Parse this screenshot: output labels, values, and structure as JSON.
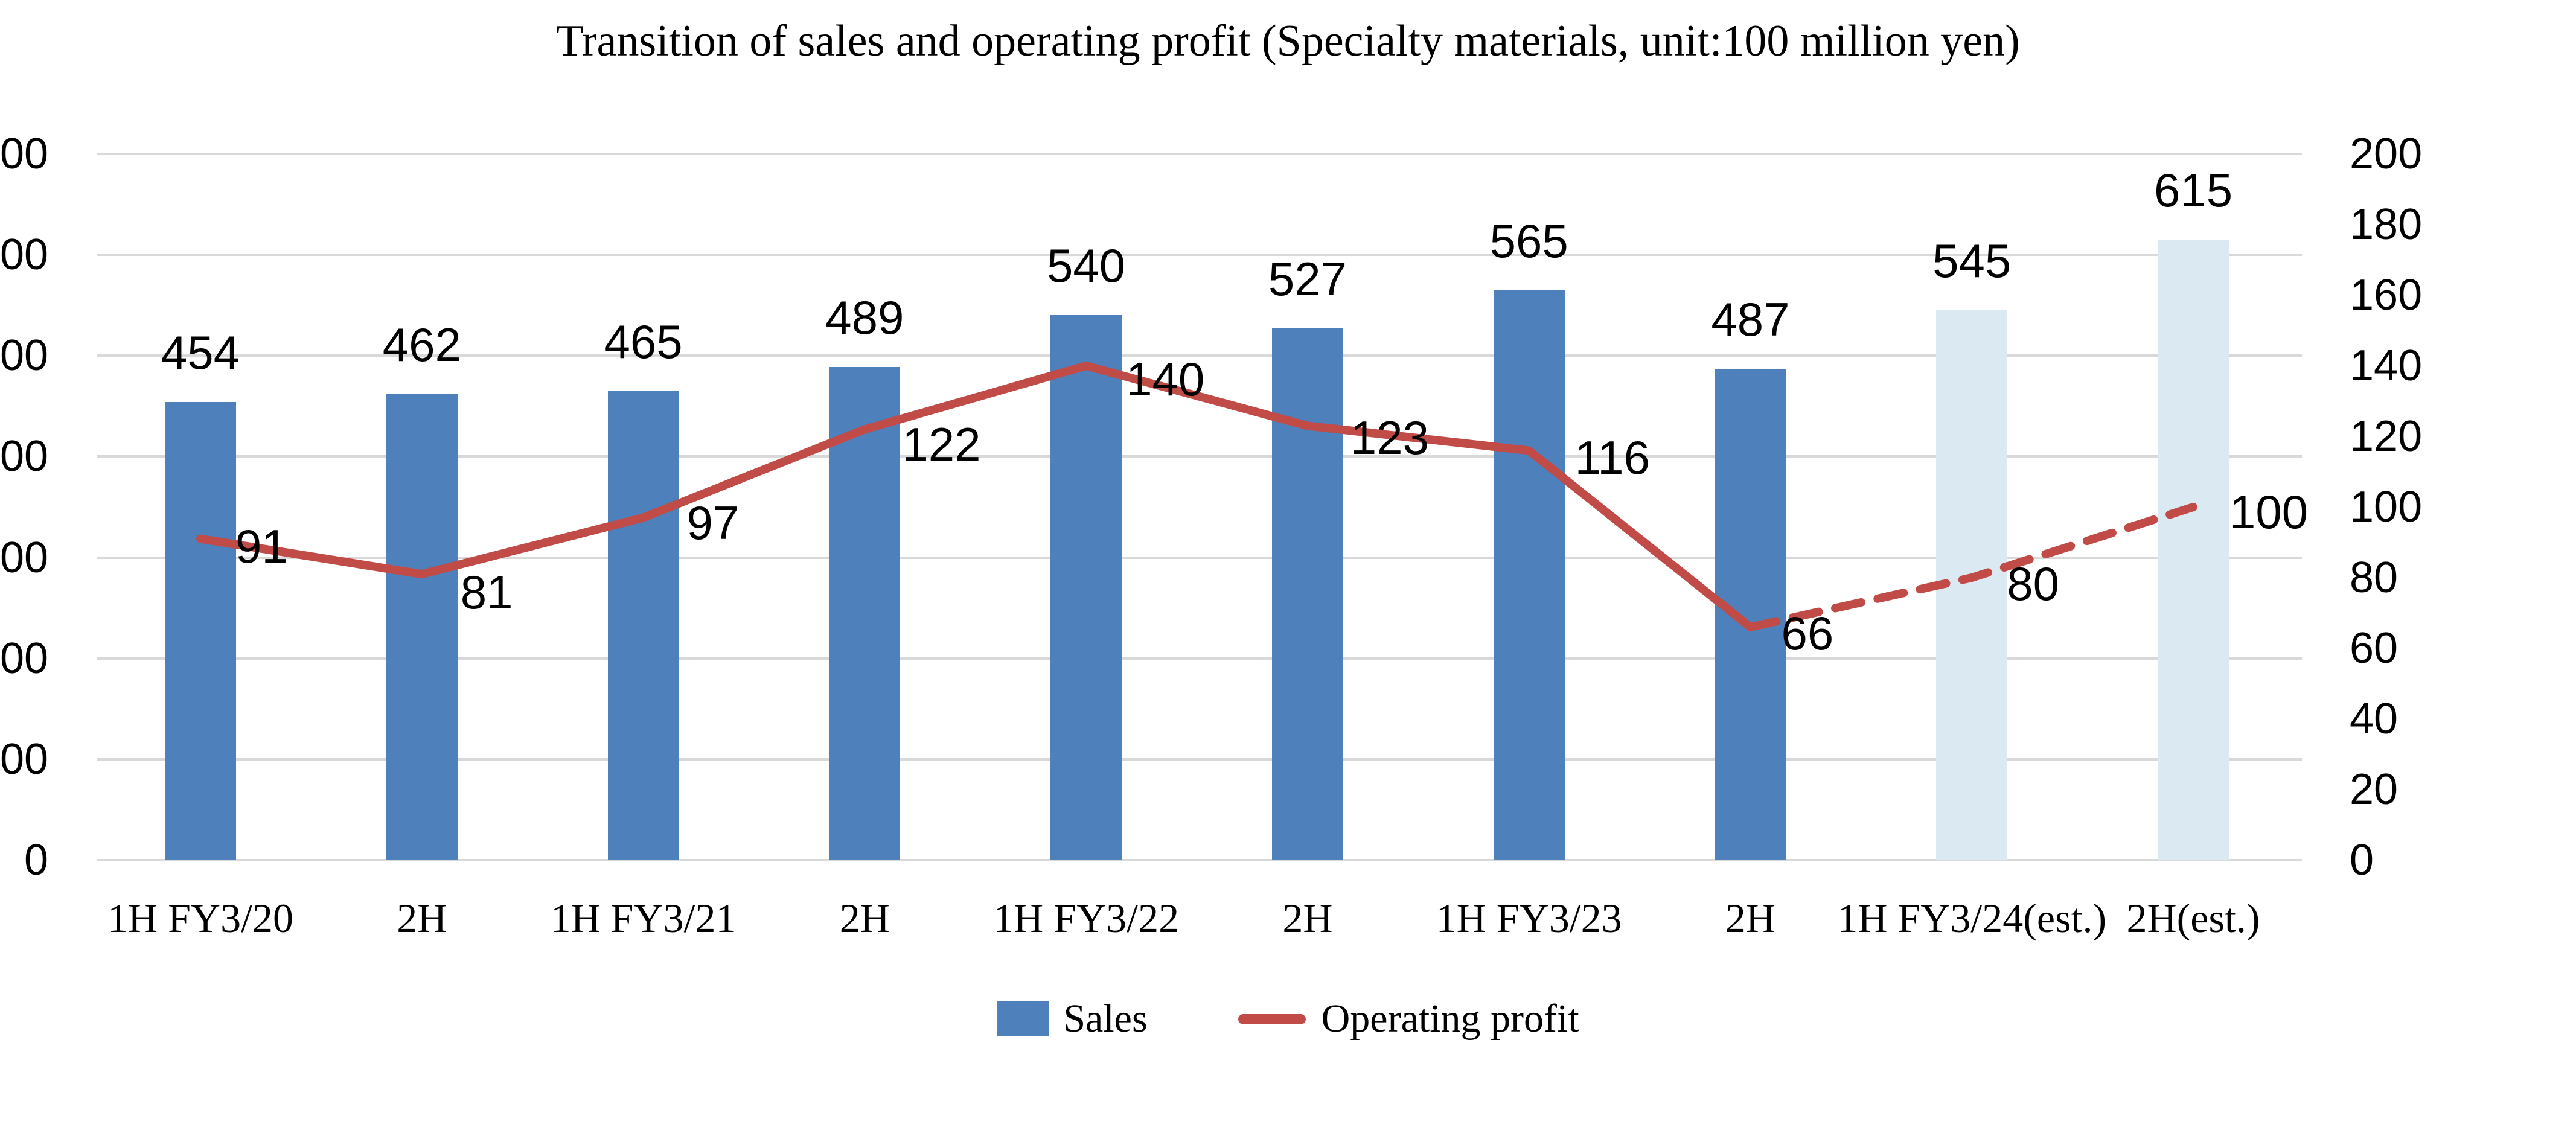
{
  "chart_data": {
    "type": "bar+line combo (dual axis)",
    "title": "Transition of sales and operating profit (Specialty materials, unit:100 million yen)",
    "categories": [
      "1H FY3/20",
      "2H",
      "1H FY3/21",
      "2H",
      "1H FY3/22",
      "2H",
      "1H FY3/23",
      "2H",
      "1H FY3/24(est.)",
      "2H(est.)"
    ],
    "series": [
      {
        "name": "Sales",
        "type": "bar",
        "axis": "left",
        "values": [
          454,
          462,
          465,
          489,
          540,
          527,
          565,
          487,
          545,
          615
        ],
        "estimate_from_index": 8
      },
      {
        "name": "Operating profit",
        "type": "line",
        "axis": "right",
        "values": [
          91,
          81,
          97,
          122,
          140,
          123,
          116,
          66,
          80,
          100
        ],
        "dashed_from_index": 7
      }
    ],
    "left_axis": {
      "range": [
        0,
        700
      ],
      "step": 100,
      "visible_labels_top_to_bottom": [
        "00",
        "00",
        "00",
        "00",
        "00",
        "00",
        "00",
        "0"
      ],
      "note": "labels cropped at image edge"
    },
    "right_axis": {
      "range": [
        0,
        200
      ],
      "step": 20,
      "labels_top_to_bottom": [
        "200",
        "180",
        "160",
        "140",
        "120",
        "100",
        "80",
        "60",
        "40",
        "20",
        "0"
      ]
    },
    "colors": {
      "bar": "#4e80bc",
      "bar_estimate": "#dbe9f2",
      "line": "#c14b47",
      "gridline": "#d9d9d9",
      "text": "#000000"
    },
    "grid": "horizontal",
    "legend_position": "bottom-center"
  }
}
